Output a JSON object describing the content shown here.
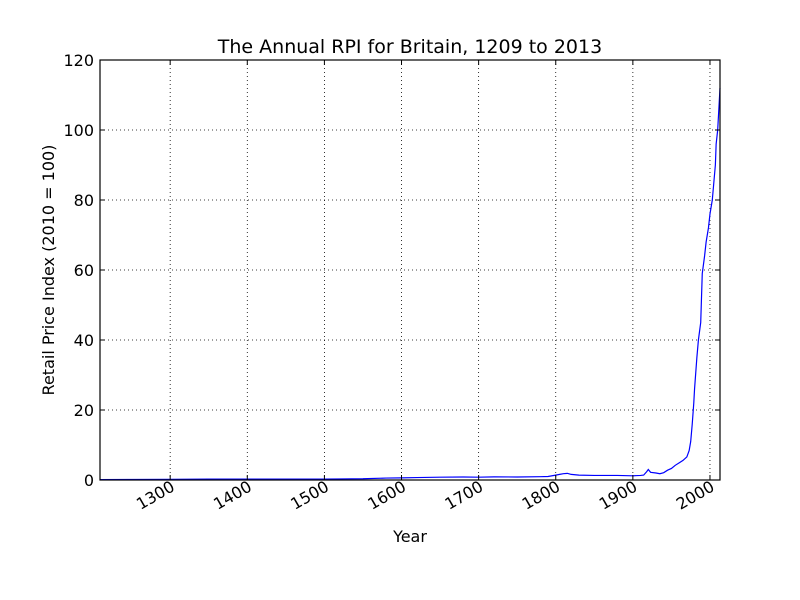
{
  "chart_data": {
    "type": "line",
    "title": "The Annual RPI for Britain, 1209 to 2013",
    "xlabel": "Year",
    "ylabel": "Retail Price Index (2010 = 100)",
    "xlim": [
      1209,
      2013
    ],
    "ylim": [
      0,
      120
    ],
    "xticks": [
      "1300",
      "1400",
      "1500",
      "1600",
      "1700",
      "1800",
      "1900",
      "2000"
    ],
    "yticks": [
      "0",
      "20",
      "40",
      "60",
      "80",
      "100",
      "120"
    ],
    "grid": true,
    "line_color": "#0000ff",
    "series": [
      {
        "x": [
          1209,
          1250,
          1300,
          1350,
          1400,
          1450,
          1500,
          1520,
          1550,
          1580,
          1600,
          1620,
          1650,
          1680,
          1700,
          1720,
          1750,
          1780,
          1790,
          1800,
          1805,
          1810,
          1815,
          1820,
          1830,
          1850,
          1880,
          1900,
          1910,
          1914,
          1918,
          1920,
          1923,
          1930,
          1935,
          1940,
          1945,
          1950,
          1955,
          1960,
          1965,
          1970,
          1973,
          1975,
          1977,
          1979,
          1980,
          1983,
          1985,
          1988,
          1990,
          1993,
          1995,
          1998,
          2000,
          2003,
          2005,
          2007,
          2008,
          2010,
          2012,
          2013
        ],
        "y": [
          0.1,
          0.15,
          0.2,
          0.25,
          0.25,
          0.25,
          0.25,
          0.3,
          0.35,
          0.55,
          0.6,
          0.7,
          0.8,
          0.85,
          0.8,
          0.9,
          0.85,
          0.95,
          1.0,
          1.4,
          1.6,
          1.8,
          1.9,
          1.6,
          1.4,
          1.3,
          1.3,
          1.2,
          1.3,
          1.4,
          2.4,
          3.0,
          2.2,
          2.0,
          1.8,
          2.1,
          2.8,
          3.3,
          4.2,
          4.9,
          5.6,
          6.6,
          8.4,
          11.0,
          16.0,
          22.0,
          26.0,
          35.0,
          40.0,
          45.0,
          59.0,
          64.0,
          68.0,
          72.0,
          76.0,
          80.0,
          85.0,
          90.0,
          96.0,
          100.0,
          108.0,
          112.0
        ]
      }
    ]
  }
}
